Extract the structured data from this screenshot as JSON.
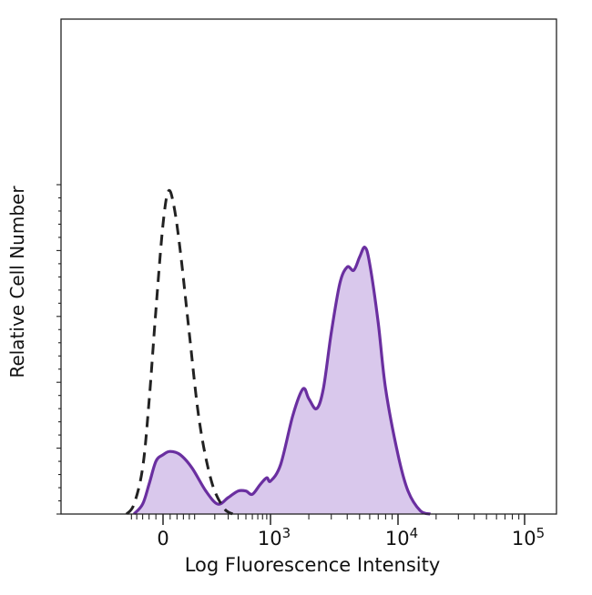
{
  "chart_data": {
    "type": "area",
    "title": "",
    "xlabel": "Log Fluorescence Intensity",
    "ylabel": "Relative Cell Number",
    "x_scale": "biexponential",
    "xlim": [
      -150,
      150000
    ],
    "ylim": [
      0,
      100
    ],
    "grid": false,
    "legend": "none",
    "x_ticks": [
      {
        "value": 0,
        "base": "0",
        "exp": ""
      },
      {
        "value": 1000,
        "base": "10",
        "exp": "3"
      },
      {
        "value": 10000,
        "base": "10",
        "exp": "4"
      },
      {
        "value": 100000,
        "base": "10",
        "exp": "5"
      }
    ],
    "series": [
      {
        "style": "dashed",
        "color": "#222222",
        "fill": "none",
        "x": [
          -120,
          -90,
          -60,
          -40,
          -20,
          0,
          15,
          30,
          50,
          80,
          120,
          180,
          260,
          340
        ],
        "y": [
          0,
          3,
          14,
          34,
          62,
          88,
          98,
          94,
          80,
          55,
          28,
          10,
          2,
          0
        ]
      },
      {
        "style": "solid",
        "color": "#6a2fa0",
        "fill": "#d9c8ec",
        "x": [
          -90,
          -60,
          -40,
          -20,
          0,
          20,
          50,
          90,
          150,
          220,
          300,
          400,
          500,
          600,
          750,
          900,
          1000,
          1200,
          1500,
          1800,
          2000,
          2300,
          2600,
          3000,
          3500,
          4000,
          4500,
          5000,
          5500,
          6000,
          7000,
          8000,
          10000,
          12000,
          15000,
          18000
        ],
        "y": [
          0,
          3,
          9,
          16,
          18,
          19,
          18,
          14,
          7,
          3,
          5,
          7,
          7,
          6,
          9,
          11,
          10,
          15,
          30,
          38,
          35,
          32,
          38,
          55,
          70,
          75,
          74,
          78,
          81,
          76,
          58,
          38,
          18,
          7,
          1,
          0
        ]
      }
    ]
  }
}
